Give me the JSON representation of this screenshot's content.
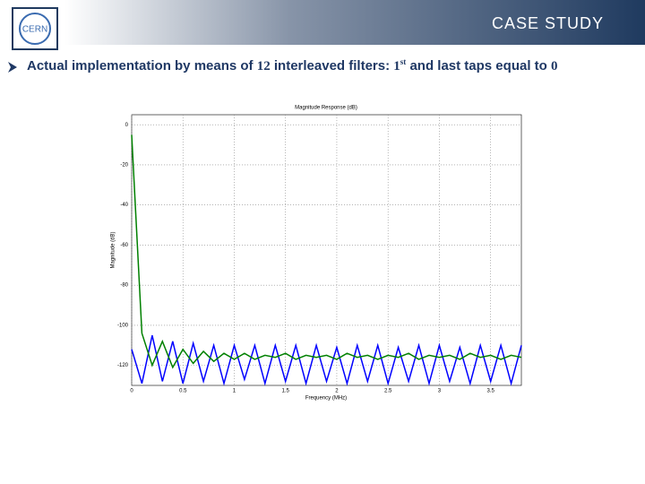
{
  "header": {
    "title": "CASE STUDY",
    "logo": "CERN"
  },
  "bullet": {
    "parts": [
      "Actual implementation by means of ",
      "12",
      " interleaved filters: ",
      "1",
      "st",
      " and last taps equal to ",
      "0"
    ]
  },
  "chart_data": {
    "type": "line",
    "title": "Magnitude Response (dB)",
    "xlabel": "Frequency (MHz)",
    "ylabel": "Magnitude (dB)",
    "x": [
      0,
      0.1,
      0.2,
      0.3,
      0.4,
      0.5,
      0.6,
      0.7,
      0.8,
      0.9,
      1,
      1.1,
      1.2,
      1.3,
      1.4,
      1.5,
      1.6,
      1.7,
      1.8,
      1.9,
      2,
      2.1,
      2.2,
      2.3,
      2.4,
      2.5,
      2.6,
      2.7,
      2.8,
      2.9,
      3,
      3.1,
      3.2,
      3.3,
      3.4,
      3.5,
      3.6,
      3.7,
      3.8
    ],
    "series": [
      {
        "color": "#0000ff",
        "values": [
          -112,
          -129,
          -105,
          -128,
          -108,
          -129,
          -109,
          -128,
          -110,
          -129,
          -110,
          -127,
          -110,
          -129,
          -110,
          -128,
          -110,
          -129,
          -110,
          -128,
          -111,
          -129,
          -110,
          -128,
          -110,
          -129,
          -111,
          -128,
          -110,
          -129,
          -110,
          -128,
          -111,
          -129,
          -110,
          -128,
          -110,
          -129,
          -110
        ]
      },
      {
        "color": "#008000",
        "values": [
          -5,
          -104,
          -120,
          -108,
          -121,
          -112,
          -119,
          -113,
          -118,
          -114,
          -117,
          -114,
          -117,
          -115,
          -116,
          -114,
          -117,
          -115,
          -116,
          -115,
          -117,
          -114,
          -116,
          -115,
          -117,
          -115,
          -116,
          -114,
          -117,
          -115,
          -116,
          -115,
          -117,
          -114,
          -116,
          -115,
          -117,
          -115,
          -116
        ]
      }
    ],
    "xlim": [
      0,
      3.8
    ],
    "xticks": [
      0,
      0.5,
      1,
      1.5,
      2,
      2.5,
      3,
      3.5
    ],
    "ylim": [
      -130,
      5
    ],
    "yticks": [
      -120,
      -100,
      -80,
      -60,
      -40,
      -20,
      0
    ],
    "grid": true
  }
}
